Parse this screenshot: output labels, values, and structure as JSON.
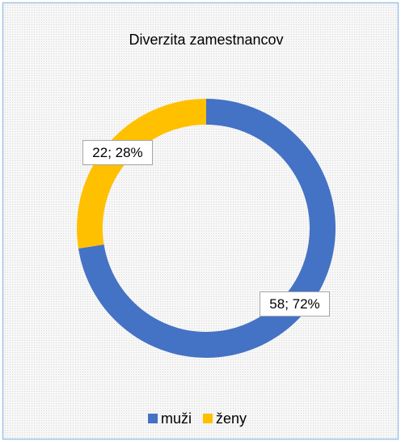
{
  "chart_data": {
    "type": "donut",
    "title": "Diverzita zamestnancov",
    "categories": [
      "muži",
      "ženy"
    ],
    "values": [
      58,
      22
    ],
    "value_labels": [
      "58; 72%",
      "22; 28%"
    ],
    "colors": [
      "#4472c4",
      "#ffc000"
    ],
    "legend": "bottom"
  }
}
